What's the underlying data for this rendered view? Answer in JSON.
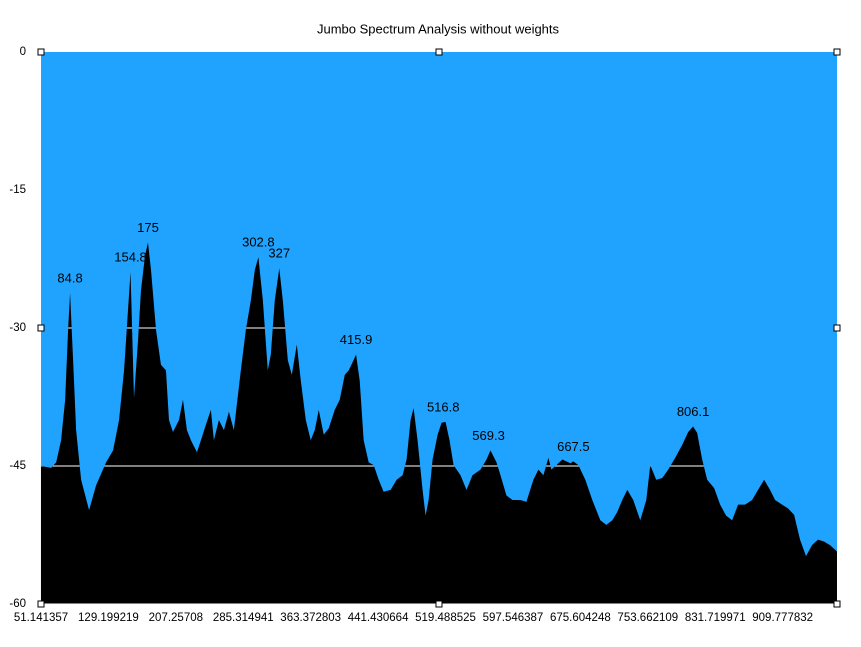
{
  "chart_data": {
    "type": "area",
    "title": "Jumbo Spectrum Analysis without weights",
    "x": [
      51.1,
      62.9,
      68.7,
      74.4,
      79.1,
      82.5,
      84.8,
      88.3,
      91.8,
      97.6,
      106.8,
      114.9,
      126.5,
      134.6,
      141.5,
      147.3,
      151.9,
      154.8,
      158.8,
      163.5,
      166.9,
      171.6,
      175,
      178.5,
      184.3,
      190.0,
      195.8,
      199.3,
      203.9,
      210.9,
      215.5,
      220.1,
      224.7,
      231.7,
      236.3,
      242.1,
      247.8,
      251.3,
      257.1,
      262.9,
      268.7,
      274.4,
      282.5,
      288.3,
      294.1,
      298.7,
      302.8,
      308.0,
      313.7,
      317.2,
      321.8,
      327,
      331.1,
      336.9,
      341.5,
      347.3,
      351.9,
      357.7,
      363.4,
      368.1,
      372.7,
      378.5,
      384.3,
      391.2,
      397.0,
      402.8,
      407.4,
      412.0,
      415.9,
      420.1,
      424.7,
      430.5,
      436.3,
      442.1,
      447.8,
      455.9,
      462.9,
      469.8,
      474.4,
      479.0,
      482.5,
      487.1,
      492.9,
      496.4,
      499.9,
      504.5,
      510.3,
      514.9,
      519.5,
      524.1,
      528.8,
      536.8,
      543.8,
      550.7,
      560.0,
      566.9,
      571.5,
      578.5,
      583.1,
      590.0,
      597.0,
      606.2,
      613.1,
      621.2,
      627.0,
      632.8,
      638.6,
      642.0,
      647.8,
      654.8,
      664.0,
      667.5,
      673.3,
      681.3,
      689.4,
      698.7,
      705.6,
      712.6,
      718.3,
      724.1,
      729.9,
      736.8,
      744.9,
      751.9,
      756.5,
      763.4,
      770.4,
      777.3,
      785.4,
      793.5,
      800.4,
      806.1,
      810.8,
      816.6,
      822.4,
      830.5,
      837.4,
      844.3,
      851.3,
      858.2,
      866.3,
      874.4,
      881.3,
      888.3,
      895.2,
      901.0,
      909.1,
      916.0,
      923.0,
      929.9,
      936.8,
      943.8,
      950.7,
      957.6,
      964.6,
      972.7
    ],
    "y": [
      -45.0,
      -45.2,
      -44.6,
      -42.2,
      -37.8,
      -30.2,
      -26.2,
      -33.5,
      -41.1,
      -46.5,
      -49.8,
      -47.1,
      -44.6,
      -43.3,
      -40.0,
      -34.6,
      -28.0,
      -23.9,
      -37.6,
      -31.3,
      -25.9,
      -22.1,
      -20.7,
      -23.7,
      -30.2,
      -34.0,
      -34.6,
      -40.0,
      -41.3,
      -40.0,
      -37.8,
      -41.1,
      -42.2,
      -43.5,
      -42.2,
      -40.5,
      -38.9,
      -42.2,
      -40.0,
      -41.1,
      -39.1,
      -41.1,
      -34.6,
      -30.2,
      -27.0,
      -23.7,
      -22.3,
      -27.0,
      -34.6,
      -32.9,
      -27.0,
      -23.5,
      -27.0,
      -33.5,
      -35.1,
      -31.8,
      -35.7,
      -40.0,
      -42.2,
      -41.1,
      -38.9,
      -41.6,
      -40.9,
      -38.9,
      -37.8,
      -35.1,
      -34.6,
      -33.7,
      -32.9,
      -35.7,
      -42.2,
      -44.6,
      -44.9,
      -46.5,
      -47.8,
      -47.6,
      -46.5,
      -46.0,
      -44.3,
      -40.0,
      -38.7,
      -42.2,
      -47.6,
      -50.4,
      -48.7,
      -44.3,
      -41.6,
      -40.3,
      -40.2,
      -42.2,
      -44.9,
      -46.0,
      -47.6,
      -46.0,
      -45.4,
      -44.3,
      -43.3,
      -44.6,
      -46.0,
      -48.2,
      -48.7,
      -48.7,
      -48.9,
      -46.5,
      -45.4,
      -46.0,
      -44.1,
      -45.4,
      -44.9,
      -44.3,
      -44.7,
      -44.5,
      -44.9,
      -46.5,
      -48.7,
      -50.9,
      -51.4,
      -50.9,
      -50.0,
      -48.7,
      -47.6,
      -48.7,
      -50.9,
      -48.7,
      -44.9,
      -46.5,
      -46.3,
      -45.4,
      -44.1,
      -42.7,
      -41.3,
      -40.7,
      -41.4,
      -44.3,
      -46.5,
      -47.4,
      -49.2,
      -50.4,
      -50.9,
      -49.2,
      -49.2,
      -48.7,
      -47.6,
      -46.5,
      -47.6,
      -48.7,
      -49.2,
      -49.6,
      -50.3,
      -53.0,
      -54.8,
      -53.6,
      -53.0,
      -53.2,
      -53.6,
      -54.3
    ],
    "color": "#000000",
    "background": "#1fa3ff",
    "xlim": [
      51.141357,
      972.7
    ],
    "ylim": [
      -60,
      0
    ],
    "xticks": [
      51.141357,
      129.199219,
      207.25708,
      285.314941,
      363.372803,
      441.430664,
      519.488525,
      597.546387,
      675.604248,
      753.662109,
      831.719971,
      909.777832
    ],
    "yticks": [
      0,
      -15,
      -30,
      -45,
      -60
    ],
    "grid": true,
    "peak_labels": [
      84.8,
      154.8,
      175,
      302.8,
      327,
      415.9,
      516.8,
      569.3,
      667.5,
      806.1
    ]
  }
}
